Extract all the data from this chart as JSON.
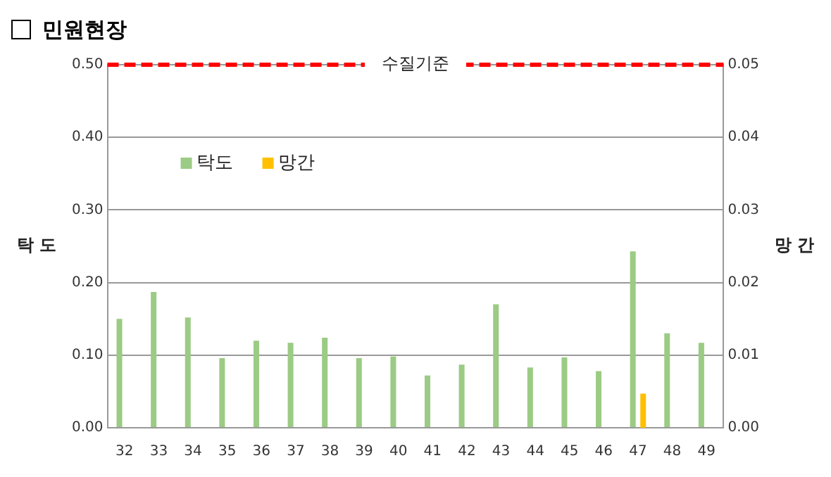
{
  "chart_data": {
    "type": "bar",
    "title": "민원현장",
    "ylabel": "탁 도",
    "y2label": "망 간",
    "categories": [
      "32",
      "33",
      "34",
      "35",
      "36",
      "37",
      "38",
      "39",
      "40",
      "41",
      "42",
      "43",
      "44",
      "45",
      "46",
      "47",
      "48",
      "49"
    ],
    "series": [
      {
        "name": "탁도",
        "color": "#9bcb84",
        "values": [
          0.15,
          0.187,
          0.152,
          0.096,
          0.12,
          0.117,
          0.124,
          0.096,
          0.098,
          0.072,
          0.087,
          0.17,
          0.083,
          0.097,
          0.078,
          0.243,
          0.13,
          0.117
        ]
      },
      {
        "name": "망간",
        "color": "#ffc000",
        "axis": "y2",
        "values": [
          null,
          null,
          null,
          null,
          null,
          null,
          null,
          null,
          null,
          null,
          null,
          null,
          null,
          null,
          null,
          0.0047,
          null,
          null
        ]
      }
    ],
    "ylim": [
      0,
      0.5
    ],
    "yticks": [
      {
        "value": 0,
        "label": "0.00"
      },
      {
        "value": 0.1,
        "label": "0.10"
      },
      {
        "value": 0.2,
        "label": "0.20"
      },
      {
        "value": 0.3,
        "label": "0.30"
      },
      {
        "value": 0.4,
        "label": "0.40"
      },
      {
        "value": 0.5,
        "label": "0.50"
      }
    ],
    "y2lim": [
      0,
      0.05
    ],
    "y2ticks": [
      {
        "value": 0,
        "label": "0.00"
      },
      {
        "value": 0.01,
        "label": "0.01"
      },
      {
        "value": 0.02,
        "label": "0.02"
      },
      {
        "value": 0.03,
        "label": "0.03"
      },
      {
        "value": 0.04,
        "label": "0.04"
      },
      {
        "value": 0.05,
        "label": "0.05"
      }
    ],
    "ref_lines": [
      {
        "axis": "y",
        "value": 0.5,
        "label": "수질기준",
        "color": "#ff0000",
        "line_style": "dashed"
      }
    ],
    "grid": "y",
    "legend": "top left"
  }
}
